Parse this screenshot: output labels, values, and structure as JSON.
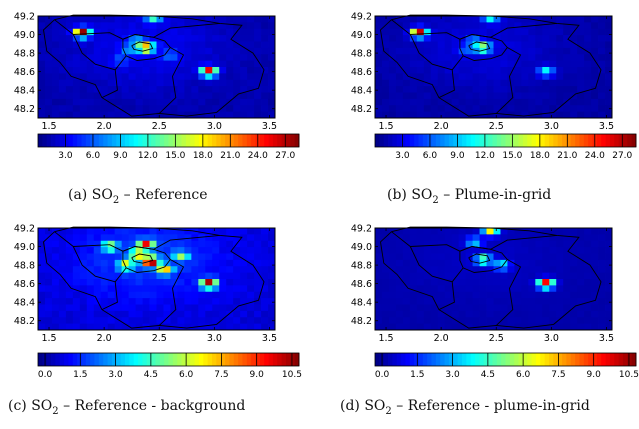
{
  "panels": [
    {
      "id": "a",
      "caption": {
        "tag": "(a)",
        "species": "SO",
        "sub": "2",
        "text": " – Reference"
      },
      "chart_data": {
        "type": "heatmap",
        "xlim": [
          1.4,
          3.55
        ],
        "ylim": [
          48.1,
          49.2
        ],
        "xticks": [
          "1.5",
          "2.0",
          "2.5",
          "3.0",
          "3.5"
        ],
        "yticks": [
          "49.2",
          "49.0",
          "48.8",
          "48.6",
          "48.4",
          "48.2"
        ],
        "colorbar": {
          "min": 0,
          "max": 28.5,
          "ticks": [
            "3.0",
            "6.0",
            "9.0",
            "12.0",
            "15.0",
            "18.0",
            "21.0",
            "24.0",
            "27.0"
          ]
        },
        "background": 2.2,
        "hotspots": [
          {
            "x": 2.38,
            "y": 48.86,
            "value": 22.0
          },
          {
            "x": 2.3,
            "y": 48.93,
            "value": 7.0
          },
          {
            "x": 2.22,
            "y": 48.84,
            "value": 6.0
          },
          {
            "x": 2.6,
            "y": 48.78,
            "value": 5.0
          },
          {
            "x": 2.95,
            "y": 48.6,
            "value": 26.0
          },
          {
            "x": 1.8,
            "y": 49.02,
            "value": 27.0
          },
          {
            "x": 2.45,
            "y": 49.17,
            "value": 10.0
          },
          {
            "x": 2.15,
            "y": 48.72,
            "value": 4.0
          }
        ]
      }
    },
    {
      "id": "b",
      "caption": {
        "tag": "(b)",
        "species": "SO",
        "sub": "2",
        "text": " – Plume-in-grid"
      },
      "chart_data": {
        "type": "heatmap",
        "xlim": [
          1.4,
          3.55
        ],
        "ylim": [
          48.1,
          49.2
        ],
        "xticks": [
          "1.5",
          "2.0",
          "2.5",
          "3.0",
          "3.5"
        ],
        "yticks": [
          "49.2",
          "49.0",
          "48.8",
          "48.6",
          "48.4",
          "48.2"
        ],
        "colorbar": {
          "min": 0,
          "max": 28.5,
          "ticks": [
            "3.0",
            "6.0",
            "9.0",
            "12.0",
            "15.0",
            "18.0",
            "21.0",
            "24.0",
            "27.0"
          ]
        },
        "background": 1.8,
        "hotspots": [
          {
            "x": 2.38,
            "y": 48.86,
            "value": 16.0
          },
          {
            "x": 2.3,
            "y": 48.93,
            "value": 6.0
          },
          {
            "x": 2.22,
            "y": 48.84,
            "value": 4.5
          },
          {
            "x": 2.95,
            "y": 48.6,
            "value": 10.0
          },
          {
            "x": 1.8,
            "y": 49.02,
            "value": 26.0
          },
          {
            "x": 2.45,
            "y": 49.17,
            "value": 9.0
          }
        ]
      }
    },
    {
      "id": "c",
      "caption": {
        "tag": "(c)",
        "species": "SO",
        "sub": "2",
        "text": " – Reference - background"
      },
      "chart_data": {
        "type": "heatmap",
        "xlim": [
          1.4,
          3.55
        ],
        "ylim": [
          48.1,
          49.2
        ],
        "xticks": [
          "1.5",
          "2.0",
          "2.5",
          "3.0",
          "3.5"
        ],
        "yticks": [
          "49.2",
          "49.0",
          "48.8",
          "48.6",
          "48.4",
          "48.2"
        ],
        "colorbar": {
          "min": -0.3,
          "max": 10.8,
          "ticks": [
            "0.0",
            "1.5",
            "3.0",
            "4.5",
            "6.0",
            "7.5",
            "9.0",
            "10.5"
          ]
        },
        "background": 1.2,
        "hotspots": [
          {
            "x": 2.42,
            "y": 48.84,
            "value": 10.5
          },
          {
            "x": 2.3,
            "y": 48.92,
            "value": 6.5
          },
          {
            "x": 2.2,
            "y": 48.8,
            "value": 5.5
          },
          {
            "x": 2.55,
            "y": 48.75,
            "value": 6.0
          },
          {
            "x": 2.95,
            "y": 48.6,
            "value": 10.0
          },
          {
            "x": 2.38,
            "y": 49.02,
            "value": 8.0
          },
          {
            "x": 2.05,
            "y": 49.0,
            "value": 5.0
          },
          {
            "x": 2.7,
            "y": 48.9,
            "value": 4.0
          }
        ]
      }
    },
    {
      "id": "d",
      "caption": {
        "tag": "(d)",
        "species": "SO",
        "sub": "2",
        "text": " – Reference - plume-in-grid"
      },
      "chart_data": {
        "type": "heatmap",
        "xlim": [
          1.4,
          3.55
        ],
        "ylim": [
          48.1,
          49.2
        ],
        "xticks": [
          "1.5",
          "2.0",
          "2.5",
          "3.0",
          "3.5"
        ],
        "yticks": [
          "49.2",
          "49.0",
          "48.8",
          "48.6",
          "48.4",
          "48.2"
        ],
        "colorbar": {
          "min": -0.3,
          "max": 10.8,
          "ticks": [
            "0.0",
            "1.5",
            "3.0",
            "4.5",
            "6.0",
            "7.5",
            "9.0",
            "10.5"
          ]
        },
        "background": 0.3,
        "hotspots": [
          {
            "x": 2.38,
            "y": 48.86,
            "value": 6.0
          },
          {
            "x": 2.55,
            "y": 48.8,
            "value": 4.0
          },
          {
            "x": 2.95,
            "y": 48.6,
            "value": 10.0
          },
          {
            "x": 2.3,
            "y": 49.05,
            "value": 3.5
          },
          {
            "x": 2.45,
            "y": 49.17,
            "value": 6.5
          }
        ]
      }
    }
  ]
}
